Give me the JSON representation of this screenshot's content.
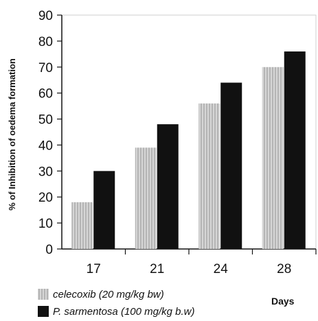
{
  "chart_data": {
    "type": "bar",
    "categories": [
      "17",
      "21",
      "24",
      "28"
    ],
    "series": [
      {
        "name": "celecoxib (20 mg/kg bw)",
        "values": [
          18,
          39,
          56,
          70
        ],
        "pattern": "vertical-stripes",
        "color": "#c8c8c8"
      },
      {
        "name": "P. sarmentosa (100 mg/kg b.w)",
        "values": [
          30,
          48,
          64,
          76
        ],
        "pattern": "solid",
        "color": "#111111"
      }
    ],
    "title": "",
    "xlabel": "Days",
    "ylabel": "% of Inhibition of  oedema formation",
    "ylim": [
      0,
      90
    ],
    "yticks": [
      0,
      10,
      20,
      30,
      40,
      50,
      60,
      70,
      80,
      90
    ],
    "grid": false,
    "legend_position": "bottom-left"
  }
}
